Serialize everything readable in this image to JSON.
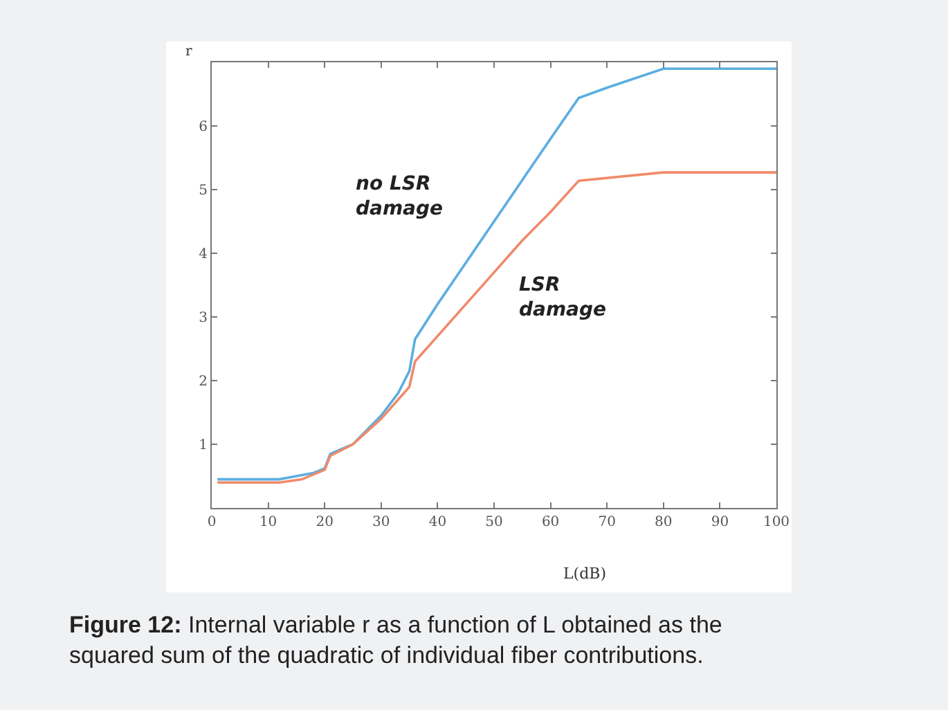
{
  "chart_data": {
    "type": "line",
    "xlabel": "L(dB)",
    "ylabel": "r",
    "xlim": [
      0,
      100
    ],
    "xticks": [
      0,
      10,
      20,
      30,
      40,
      50,
      60,
      70,
      80,
      90,
      100
    ],
    "ylim": [
      0,
      7
    ],
    "yticks": [
      1,
      2,
      3,
      4,
      5,
      6
    ],
    "legend": false,
    "marker": "none",
    "line_style": "solid",
    "series": [
      {
        "color": "#5aaee0",
        "x": [
          1,
          12,
          15,
          18,
          20,
          21,
          25,
          30,
          33,
          35,
          36,
          40,
          45,
          50,
          55,
          60,
          65,
          70,
          80,
          100
        ],
        "values": [
          0.45,
          0.45,
          0.5,
          0.55,
          0.62,
          0.85,
          1.0,
          1.45,
          1.8,
          2.15,
          2.65,
          3.2,
          3.85,
          4.5,
          5.15,
          5.8,
          6.44,
          6.6,
          6.9,
          6.9
        ]
      },
      {
        "color": "#f08a6a",
        "x": [
          1,
          12,
          16,
          20,
          21,
          25,
          30,
          35,
          36,
          40,
          45,
          50,
          55,
          60,
          65,
          80,
          100
        ],
        "values": [
          0.4,
          0.4,
          0.45,
          0.6,
          0.82,
          1.0,
          1.4,
          1.9,
          2.3,
          2.7,
          3.2,
          3.7,
          4.2,
          4.65,
          5.14,
          5.27,
          5.27
        ]
      }
    ],
    "annotations": [
      "no LSR\ndamage",
      "LSR\ndamage",
      "Figure 12: Internal variable r as a function of L obtained as the\nsquared sum of the quadratic of individual fiber contributions."
    ]
  }
}
